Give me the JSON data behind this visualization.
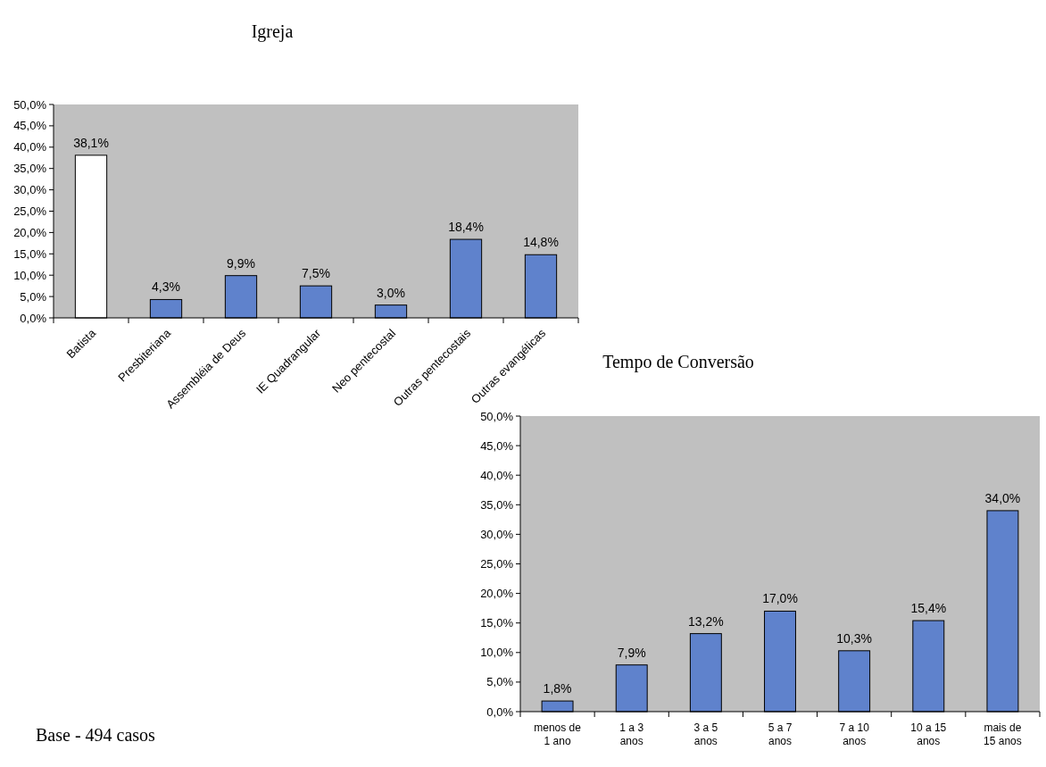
{
  "chart_data": [
    {
      "type": "bar",
      "title": "Igreja",
      "categories": [
        "Batista",
        "Presbiteriana",
        "Assembléia de Deus",
        "IE Quadrangular",
        "Neo pentecostal",
        "Outras pentecostais",
        "Outras evangélicas"
      ],
      "values": [
        38.1,
        4.3,
        9.9,
        7.5,
        3.0,
        18.4,
        14.8
      ],
      "colors": [
        "#ffffff",
        "#5f82cc",
        "#5f82cc",
        "#5f82cc",
        "#5f82cc",
        "#5f82cc",
        "#5f82cc"
      ],
      "value_labels": [
        "38,1%",
        "4,3%",
        "9,9%",
        "7,5%",
        "3,0%",
        "18,4%",
        "14,8%"
      ],
      "ylim": [
        0,
        50
      ],
      "yticks": [
        {
          "value": 0,
          "label": "0,0%"
        },
        {
          "value": 5,
          "label": "5,0%"
        },
        {
          "value": 10,
          "label": "10,0%"
        },
        {
          "value": 15,
          "label": "15,0%"
        },
        {
          "value": 20,
          "label": "20,0%"
        },
        {
          "value": 25,
          "label": "25,0%"
        },
        {
          "value": 30,
          "label": "30,0%"
        },
        {
          "value": 35,
          "label": "35,0%"
        },
        {
          "value": 40,
          "label": "40,0%"
        },
        {
          "value": 45,
          "label": "45,0%"
        },
        {
          "value": 50,
          "label": "50,0%"
        }
      ],
      "grid": false,
      "annotations": [
        "Base - 494 casos"
      ]
    },
    {
      "type": "bar",
      "title": "Tempo de Conversão",
      "categories": [
        "menos de\n1 ano",
        "1 a 3\nanos",
        "3 a 5\nanos",
        "5 a 7\nanos",
        "7 a 10\nanos",
        "10 a 15\nanos",
        "mais de\n15 anos"
      ],
      "values": [
        1.8,
        7.9,
        13.2,
        17.0,
        10.3,
        15.4,
        34.0
      ],
      "color": "#5f82cc",
      "value_labels": [
        "1,8%",
        "7,9%",
        "13,2%",
        "17,0%",
        "10,3%",
        "15,4%",
        "34,0%"
      ],
      "ylim": [
        0,
        50
      ],
      "yticks": [
        {
          "value": 0,
          "label": "0,0%"
        },
        {
          "value": 5,
          "label": "5,0%"
        },
        {
          "value": 10,
          "label": "10,0%"
        },
        {
          "value": 15,
          "label": "15,0%"
        },
        {
          "value": 20,
          "label": "20,0%"
        },
        {
          "value": 25,
          "label": "25,0%"
        },
        {
          "value": 30,
          "label": "30,0%"
        },
        {
          "value": 35,
          "label": "35,0%"
        },
        {
          "value": 40,
          "label": "40,0%"
        },
        {
          "value": 45,
          "label": "45,0%"
        },
        {
          "value": 50,
          "label": "50,0%"
        }
      ],
      "grid": false
    }
  ]
}
